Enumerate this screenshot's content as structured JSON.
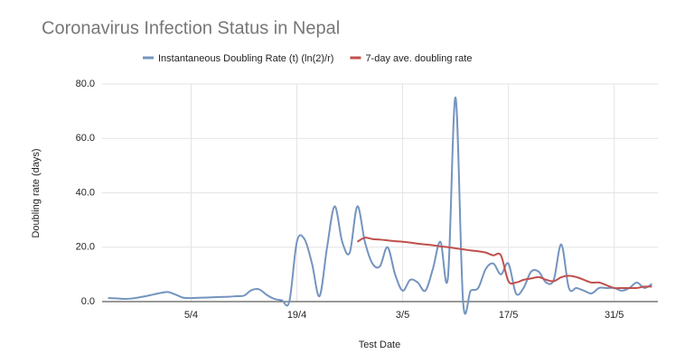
{
  "chart_data": {
    "type": "line",
    "title": "Coronavirus Infection Status in Nepal",
    "x_label": "Test Date",
    "y_label": "Doubling rate (days)",
    "categories": [
      null,
      null,
      null,
      null,
      null,
      null,
      null,
      null,
      null,
      null,
      null,
      "5/4",
      null,
      null,
      null,
      null,
      null,
      null,
      null,
      null,
      null,
      null,
      null,
      null,
      null,
      "19/4",
      null,
      null,
      null,
      null,
      null,
      null,
      null,
      null,
      null,
      null,
      null,
      null,
      null,
      "3/5",
      null,
      null,
      null,
      null,
      null,
      null,
      null,
      null,
      null,
      null,
      null,
      null,
      null,
      "17/5",
      null,
      null,
      null,
      null,
      null,
      null,
      null,
      null,
      null,
      null,
      null,
      null,
      null,
      "31/5",
      null,
      null,
      null,
      null,
      null
    ],
    "series": [
      {
        "name": "Instantaneous Doubling Rate (t) (ln(2)/r)",
        "color": "#7494c0",
        "values": [
          1.3,
          1.2,
          1.0,
          1.1,
          1.5,
          2,
          2.6,
          3.2,
          3.5,
          2.5,
          1.4,
          1.3,
          1.4,
          1.5,
          1.6,
          1.7,
          1.8,
          2.0,
          2.2,
          4.2,
          4.5,
          2.5,
          1,
          0.5,
          0,
          22,
          23,
          14,
          2,
          20,
          35,
          22,
          18,
          35,
          22,
          14,
          13,
          20,
          10,
          4,
          8,
          7,
          4,
          12,
          22,
          9,
          75,
          0,
          4,
          5,
          12,
          14,
          10,
          14,
          3,
          5,
          11,
          11,
          7,
          8,
          21,
          5,
          5,
          4,
          3,
          5,
          5,
          5,
          4,
          5,
          7,
          5,
          6.5
        ]
      },
      {
        "name": "7-day ave. doubling rate",
        "color": "#c0504d",
        "values": [
          null,
          null,
          null,
          null,
          null,
          null,
          null,
          null,
          null,
          null,
          null,
          null,
          null,
          null,
          null,
          null,
          null,
          null,
          null,
          null,
          null,
          null,
          null,
          null,
          null,
          null,
          null,
          null,
          null,
          null,
          null,
          null,
          null,
          22,
          23.5,
          23,
          22.8,
          22.5,
          22.2,
          22,
          21.7,
          21.3,
          21,
          20.7,
          20.3,
          20,
          19.6,
          19.2,
          18.8,
          18.5,
          18,
          17,
          17,
          7.5,
          7,
          8,
          8.5,
          9,
          8,
          7.5,
          9,
          9.5,
          9,
          8,
          7,
          7,
          6,
          5,
          5,
          5,
          5,
          5.5,
          5.5
        ]
      }
    ],
    "ylim": [
      0,
      80
    ],
    "yticks": [
      {
        "value": 0,
        "label": "0.0"
      },
      {
        "value": 20,
        "label": "20.0"
      },
      {
        "value": 40,
        "label": "40.0"
      },
      {
        "value": 60,
        "label": "60.0"
      },
      {
        "value": 80,
        "label": "80.0"
      }
    ],
    "grid": true,
    "legend": "top"
  }
}
